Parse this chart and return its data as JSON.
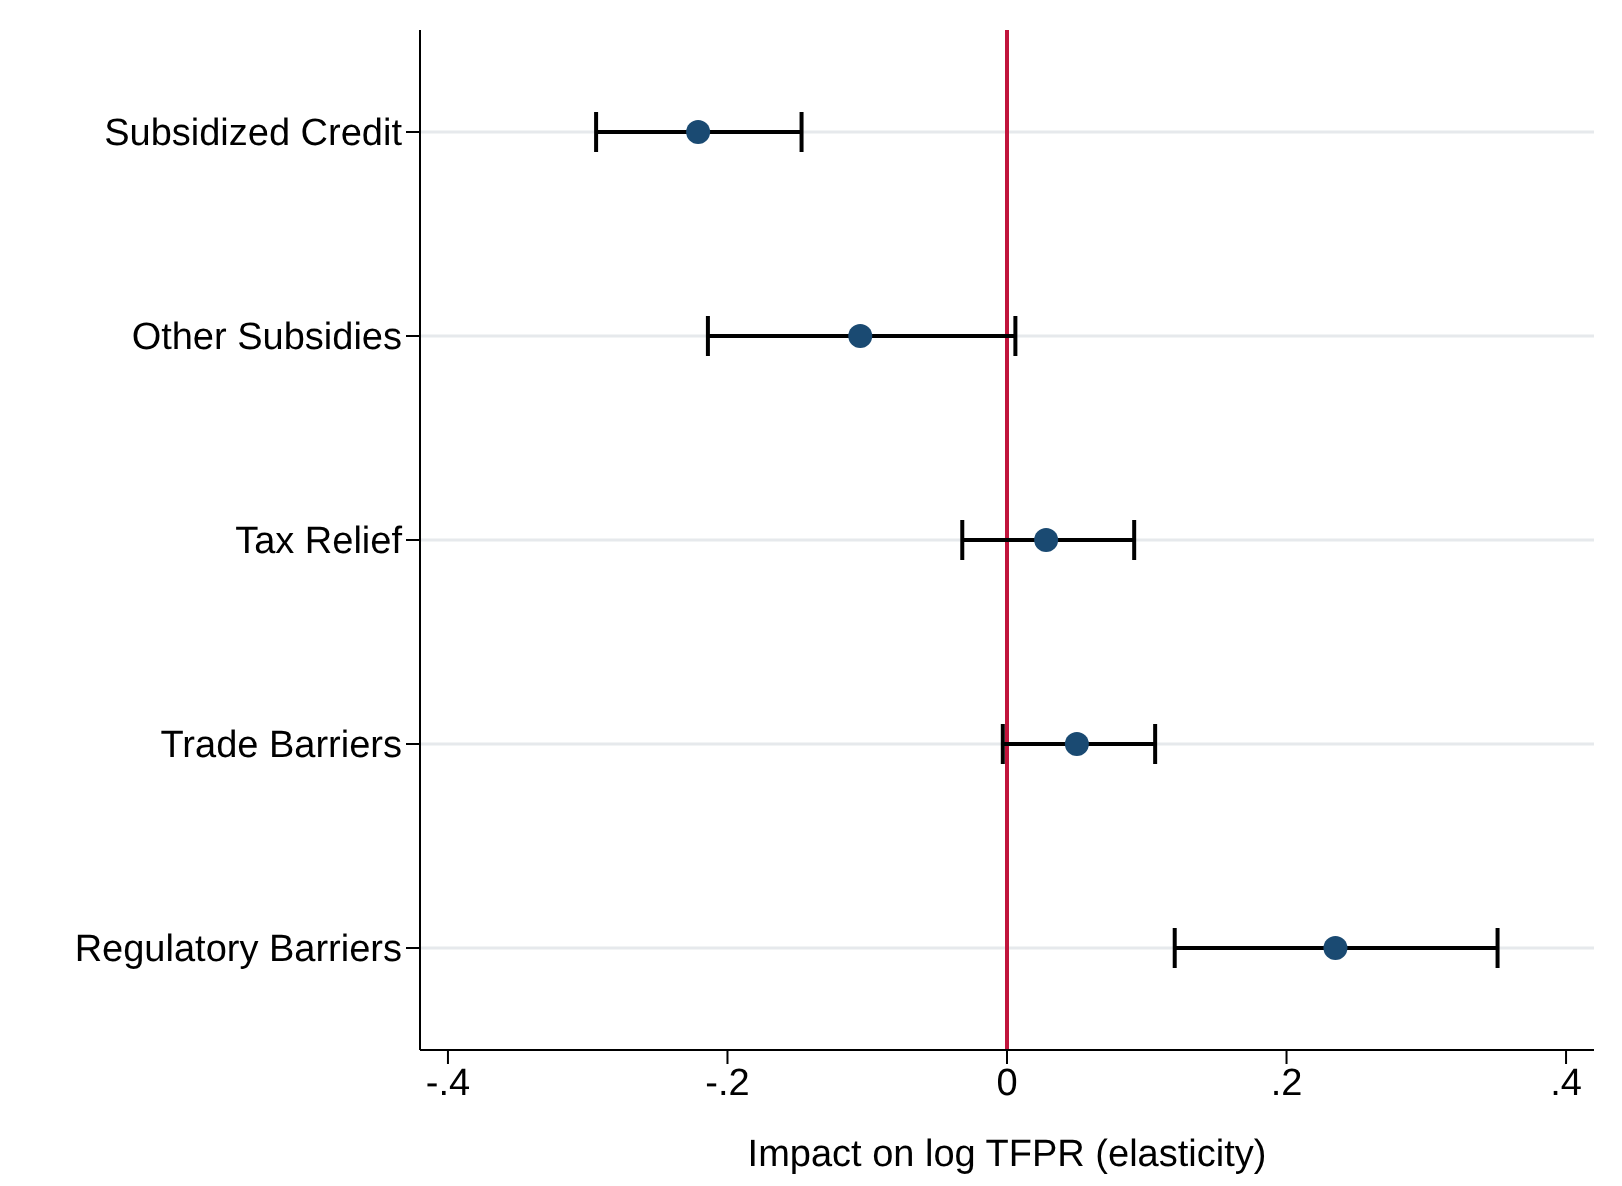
{
  "chart_data": {
    "type": "scatter",
    "orientation": "horizontal",
    "xlabel": "Impact on log TFPR (elasticity)",
    "categories": [
      "Subsidized Credit",
      "Other Subsidies",
      "Tax Relief",
      "Trade Barriers",
      "Regulatory Barriers"
    ],
    "values": [
      -0.221,
      -0.105,
      0.028,
      0.05,
      0.235
    ],
    "errors": [
      [
        -0.294,
        -0.147
      ],
      [
        -0.214,
        0.006
      ],
      [
        -0.032,
        0.091
      ],
      [
        -0.003,
        0.106
      ],
      [
        0.12,
        0.351
      ]
    ],
    "color": "#1a4a72",
    "marker": "circle",
    "xlim": [
      -0.42,
      0.42
    ],
    "xticks": [
      {
        "value": -0.4,
        "label": "-.4"
      },
      {
        "value": -0.2,
        "label": "-.2"
      },
      {
        "value": 0,
        "label": "0"
      },
      {
        "value": 0.2,
        "label": ".2"
      },
      {
        "value": 0.4,
        "label": ".4"
      }
    ],
    "ref_lines": [
      {
        "axis": "x",
        "value": 0,
        "color": "#c0143c"
      }
    ],
    "grid": "y"
  }
}
